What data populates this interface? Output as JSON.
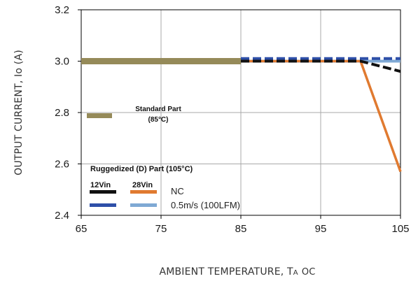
{
  "chart_data": {
    "type": "line",
    "xlabel": "AMBIENT TEMPERATURE, T",
    "xlabel_subscript": "A",
    "xlabel_unit": "OC",
    "ylabel": "OUTPUT CURRENT, Io  (A)",
    "xlim": [
      65,
      105
    ],
    "ylim": [
      2.4,
      3.2
    ],
    "x_ticks": [
      65,
      75,
      85,
      95,
      105
    ],
    "x_tick_labels": [
      "65",
      "75",
      "85",
      "95",
      "105"
    ],
    "y_ticks": [
      2.4,
      2.6,
      2.8,
      3.0,
      3.2
    ],
    "y_tick_labels": [
      "2.4",
      "2.6",
      "2.8",
      "3.0",
      "3.2"
    ],
    "grid": true,
    "series": [
      {
        "name": "Standard Part (85°C)",
        "color": "#958A59",
        "style": "solid",
        "x": [
          65,
          85
        ],
        "y": [
          3.0,
          3.0
        ]
      },
      {
        "name": "12Vin NC",
        "color": "#111111",
        "style": "dashed",
        "x": [
          85,
          100,
          105
        ],
        "y": [
          3.0,
          3.0,
          2.96
        ]
      },
      {
        "name": "12Vin 0.5m/s (100LFM)",
        "color": "#2E4FA8",
        "style": "dashed",
        "x": [
          85,
          105
        ],
        "y": [
          3.01,
          3.01
        ]
      },
      {
        "name": "28Vin NC",
        "color": "#E07A30",
        "style": "solid",
        "x": [
          85,
          100,
          105
        ],
        "y": [
          3.0,
          3.0,
          2.57
        ]
      },
      {
        "name": "28Vin 0.5m/s (100LFM)",
        "color": "#7FA9D4",
        "style": "solid",
        "x": [
          85,
          105
        ],
        "y": [
          3.0,
          3.0
        ]
      }
    ],
    "legend": {
      "standard_title": "Standard Part",
      "standard_sub": "(85°C)",
      "standard_color": "#958A59",
      "rugged_title": "Ruggedized (D) Part (105°C)",
      "col_12vin": "12Vin",
      "col_28vin": "28Vin",
      "row_nc": "NC",
      "row_air": "0.5m/s (100LFM)",
      "swatch_12_nc": "#111111",
      "swatch_28_nc": "#E07A30",
      "swatch_12_air": "#2E4FA8",
      "swatch_28_air": "#7FA9D4"
    }
  }
}
